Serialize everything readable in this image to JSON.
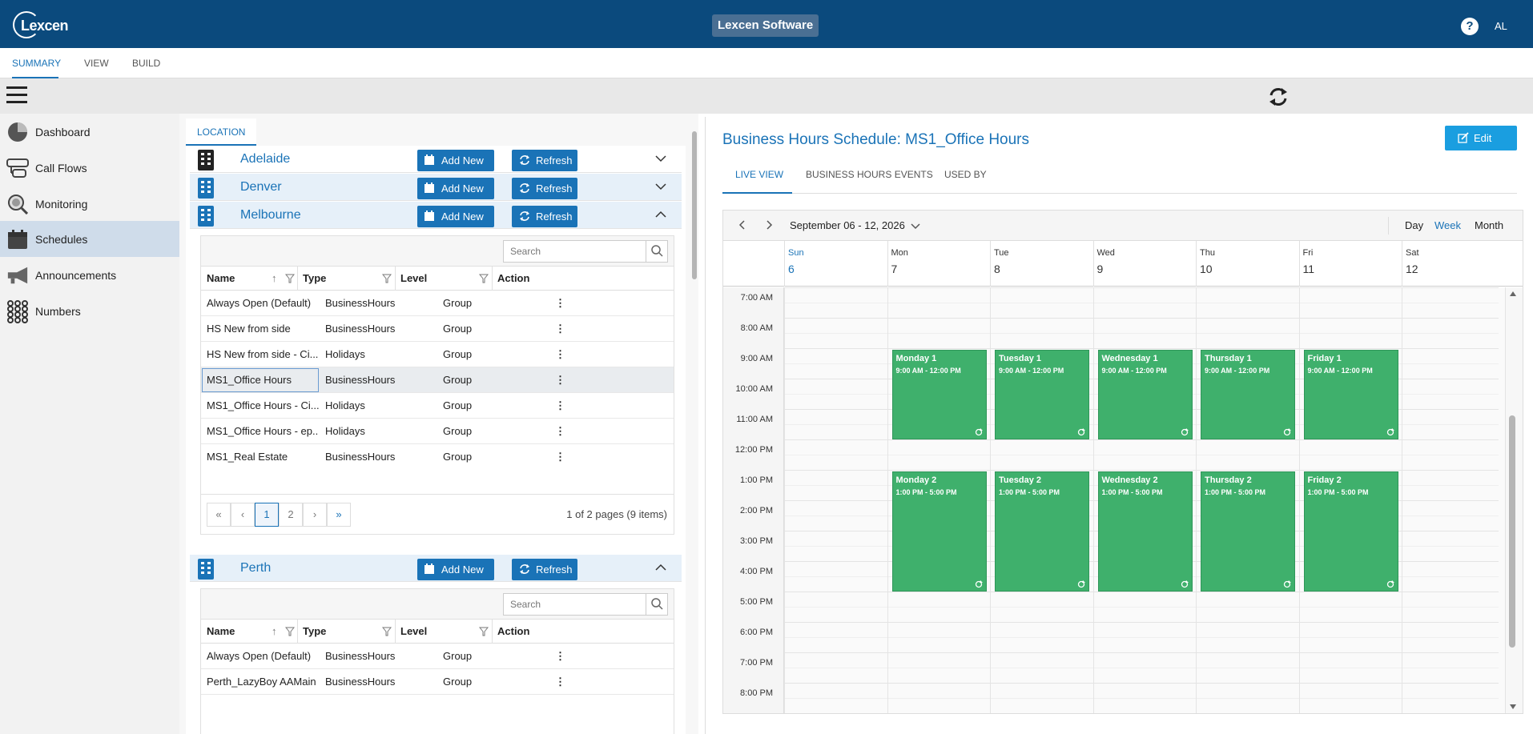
{
  "header": {
    "logo_text": "Lexcen",
    "app_title": "Lexcen Software",
    "help_label": "?",
    "user_initials": "AL"
  },
  "tabs": [
    {
      "label": "SUMMARY"
    },
    {
      "label": "VIEW"
    },
    {
      "label": "BUILD"
    }
  ],
  "sidebar": {
    "items": [
      {
        "label": "Dashboard",
        "icon": "pie-chart-icon"
      },
      {
        "label": "Call Flows",
        "icon": "call-flows-icon"
      },
      {
        "label": "Monitoring",
        "icon": "magnifier-icon"
      },
      {
        "label": "Schedules",
        "icon": "calendar-icon"
      },
      {
        "label": "Announcements",
        "icon": "megaphone-icon"
      },
      {
        "label": "Numbers",
        "icon": "keypad-icon"
      }
    ]
  },
  "left": {
    "location_tab": "LOCATION",
    "add_new": "Add New",
    "refresh": "Refresh",
    "search_placeholder": "Search",
    "columns": {
      "name": "Name",
      "type": "Type",
      "level": "Level",
      "action": "Action"
    },
    "locations": [
      {
        "name": "Adelaide"
      },
      {
        "name": "Denver"
      },
      {
        "name": "Melbourne",
        "rows": [
          {
            "name": "Always Open (Default)",
            "type": "BusinessHours",
            "level": "Group"
          },
          {
            "name": "HS New from side",
            "type": "BusinessHours",
            "level": "Group"
          },
          {
            "name": "HS New from side - Ci...",
            "type": "Holidays",
            "level": "Group"
          },
          {
            "name": "MS1_Office Hours",
            "type": "BusinessHours",
            "level": "Group"
          },
          {
            "name": "MS1_Office Hours - Ci...",
            "type": "Holidays",
            "level": "Group"
          },
          {
            "name": "MS1_Office Hours - ep...",
            "type": "Holidays",
            "level": "Group"
          },
          {
            "name": "MS1_Real Estate",
            "type": "BusinessHours",
            "level": "Group"
          }
        ],
        "pager": {
          "first": "«",
          "prev": "‹",
          "pages": [
            "1",
            "2"
          ],
          "next": "›",
          "last": "»",
          "info": "1 of 2 pages (9 items)"
        }
      },
      {
        "name": "Perth",
        "rows": [
          {
            "name": "Always Open (Default)",
            "type": "BusinessHours",
            "level": "Group"
          },
          {
            "name": "Perth_LazyBoy AAMain",
            "type": "BusinessHours",
            "level": "Group"
          }
        ]
      }
    ],
    "action_glyph": "⋮"
  },
  "right": {
    "title": "Business Hours Schedule: MS1_Office Hours",
    "edit_label": "Edit",
    "tabs": [
      {
        "label": "LIVE VIEW"
      },
      {
        "label": "BUSINESS HOURS EVENTS"
      },
      {
        "label": "USED BY"
      }
    ],
    "calendar": {
      "range": "September 06 - 12, 2026",
      "views": [
        "Day",
        "Week",
        "Month"
      ],
      "active_view": "Week",
      "days": [
        {
          "name": "Sun",
          "date": "6"
        },
        {
          "name": "Mon",
          "date": "7"
        },
        {
          "name": "Tue",
          "date": "8"
        },
        {
          "name": "Wed",
          "date": "9"
        },
        {
          "name": "Thu",
          "date": "10"
        },
        {
          "name": "Fri",
          "date": "11"
        },
        {
          "name": "Sat",
          "date": "12"
        }
      ],
      "times": [
        "7:00 AM",
        "8:00 AM",
        "9:00 AM",
        "10:00 AM",
        "11:00 AM",
        "12:00 PM",
        "1:00 PM",
        "2:00 PM",
        "3:00 PM",
        "4:00 PM",
        "5:00 PM",
        "6:00 PM",
        "7:00 PM",
        "8:00 PM"
      ],
      "events": [
        {
          "day": 1,
          "title": "Monday 1",
          "time": "9:00 AM - 12:00 PM",
          "start": 9,
          "end": 12
        },
        {
          "day": 2,
          "title": "Tuesday 1",
          "time": "9:00 AM - 12:00 PM",
          "start": 9,
          "end": 12
        },
        {
          "day": 3,
          "title": "Wednesday 1",
          "time": "9:00 AM - 12:00 PM",
          "start": 9,
          "end": 12
        },
        {
          "day": 4,
          "title": "Thursday 1",
          "time": "9:00 AM - 12:00 PM",
          "start": 9,
          "end": 12
        },
        {
          "day": 5,
          "title": "Friday 1",
          "time": "9:00 AM - 12:00 PM",
          "start": 9,
          "end": 12
        },
        {
          "day": 1,
          "title": "Monday 2",
          "time": "1:00 PM - 5:00 PM",
          "start": 13,
          "end": 17
        },
        {
          "day": 2,
          "title": "Tuesday 2",
          "time": "1:00 PM - 5:00 PM",
          "start": 13,
          "end": 17
        },
        {
          "day": 3,
          "title": "Wednesday 2",
          "time": "1:00 PM - 5:00 PM",
          "start": 13,
          "end": 17
        },
        {
          "day": 4,
          "title": "Thursday 2",
          "time": "1:00 PM - 5:00 PM",
          "start": 13,
          "end": 17
        },
        {
          "day": 5,
          "title": "Friday 2",
          "time": "1:00 PM - 5:00 PM",
          "start": 13,
          "end": 17
        }
      ]
    }
  },
  "colors": {
    "brand": "#0b4a7d",
    "accent": "#1a73b7",
    "event": "#3fb06c"
  }
}
